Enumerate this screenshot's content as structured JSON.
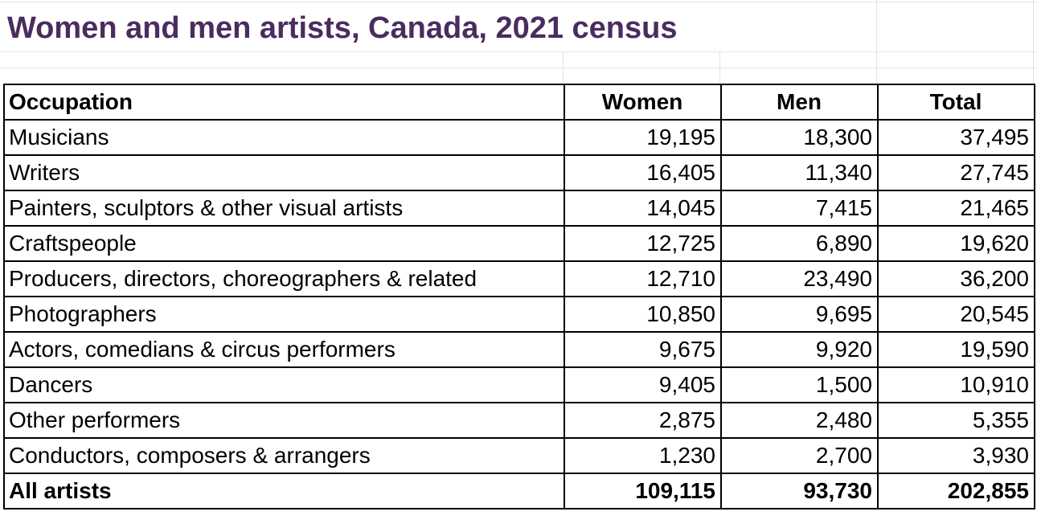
{
  "title": "Women and men artists, Canada, 2021 census",
  "colors": {
    "title": "#4a2c5e",
    "border": "#000000",
    "gridline": "#e3e3e3"
  },
  "table": {
    "headers": [
      "Occupation",
      "Women",
      "Men",
      "Total"
    ],
    "rows": [
      [
        "Musicians",
        "19,195",
        "18,300",
        "37,495"
      ],
      [
        "Writers",
        "16,405",
        "11,340",
        "27,745"
      ],
      [
        "Painters, sculptors & other visual artists",
        "14,045",
        "7,415",
        "21,465"
      ],
      [
        "Craftspeople",
        "12,725",
        "6,890",
        "19,620"
      ],
      [
        "Producers, directors, choreographers & related",
        "12,710",
        "23,490",
        "36,200"
      ],
      [
        "Photographers",
        "10,850",
        "9,695",
        "20,545"
      ],
      [
        "Actors, comedians & circus performers",
        "9,675",
        "9,920",
        "19,590"
      ],
      [
        "Dancers",
        "9,405",
        "1,500",
        "10,910"
      ],
      [
        "Other performers",
        "2,875",
        "2,480",
        "5,355"
      ],
      [
        "Conductors, composers & arrangers",
        "1,230",
        "2,700",
        "3,930"
      ]
    ],
    "total": [
      "All artists",
      "109,115",
      "93,730",
      "202,855"
    ]
  }
}
